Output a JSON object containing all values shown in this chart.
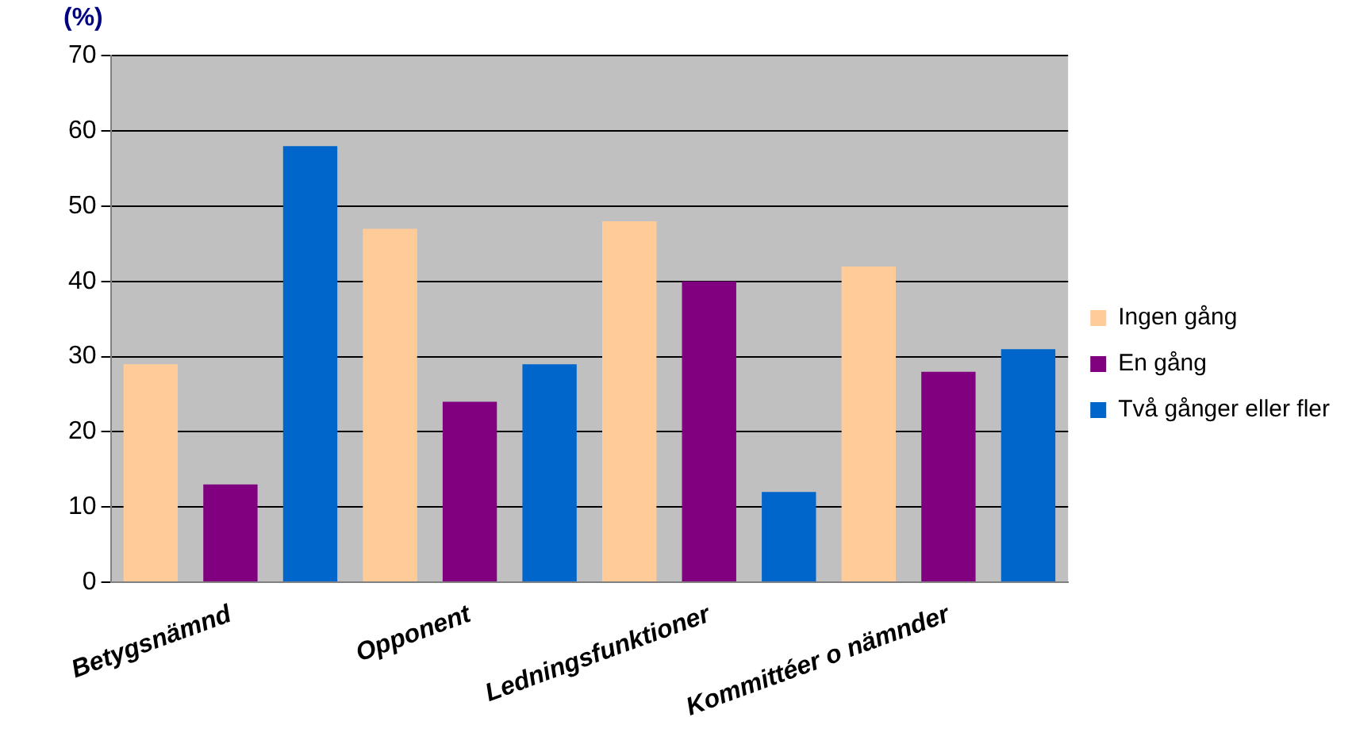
{
  "chart_data": {
    "type": "bar",
    "title": "(%)",
    "categories": [
      "Betygsnämnd",
      "Opponent",
      "Ledningsfunktioner",
      "Kommittéer o nämnder"
    ],
    "series": [
      {
        "name": "Ingen gång",
        "color": "#ffcc99",
        "values": [
          29,
          47,
          48,
          42
        ]
      },
      {
        "name": "En gång",
        "color": "#800080",
        "values": [
          13,
          24,
          40,
          28
        ]
      },
      {
        "name": "Två gånger eller fler",
        "color": "#0066cc",
        "values": [
          58,
          29,
          12,
          31
        ]
      }
    ],
    "ylim": [
      0,
      70
    ],
    "yticks": [
      0,
      10,
      20,
      30,
      40,
      50,
      60,
      70
    ],
    "grid": "y",
    "legend": "right"
  }
}
